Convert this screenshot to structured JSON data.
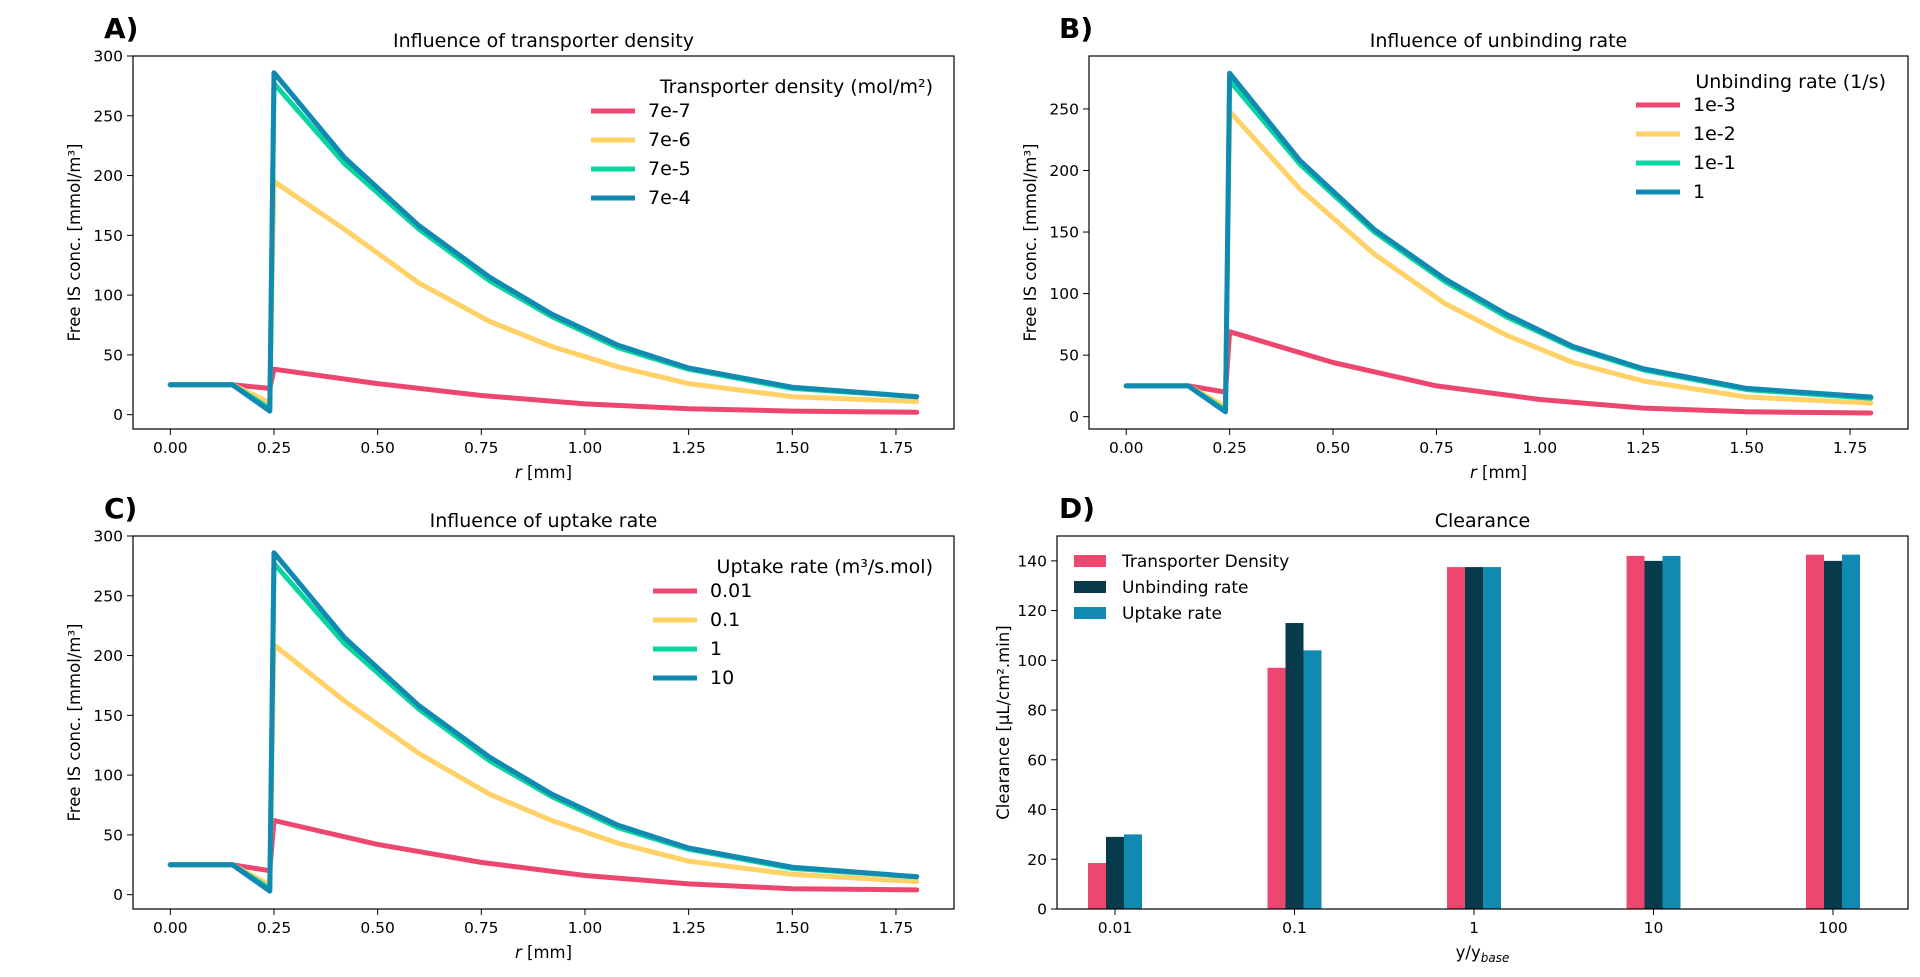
{
  "colors": {
    "red": "#EE476F",
    "yellow": "#FFD166",
    "green": "#06D6A0",
    "blue": "#118AB2",
    "navy": "#073B4C"
  },
  "chart_data": [
    {
      "panel": "A)",
      "type": "line",
      "title": "Influence of transporter density",
      "xlabel_italic": "r",
      "xlabel_rest": " [mm]",
      "ylabel": "Free IS conc. [mmol/m³]",
      "xlim": [
        -0.09,
        1.89
      ],
      "ylim": [
        -12,
        300
      ],
      "xticks": [
        0,
        0.25,
        0.5,
        0.75,
        1.0,
        1.25,
        1.5,
        1.75
      ],
      "xticklabels": [
        "0.00",
        "0.25",
        "0.50",
        "0.75",
        "1.00",
        "1.25",
        "1.50",
        "1.75"
      ],
      "yticks": [
        0,
        50,
        100,
        150,
        200,
        250,
        300
      ],
      "yticklabels": [
        "0",
        "50",
        "100",
        "150",
        "200",
        "250",
        "300"
      ],
      "legend": {
        "title": "Transporter density (mol/m²)",
        "position": "upper right"
      },
      "series": [
        {
          "name": "7e-7",
          "color": "#EE476F",
          "x": [
            0,
            0.15,
            0.24,
            0.25,
            0.5,
            0.75,
            1.0,
            1.25,
            1.5,
            1.8
          ],
          "y": [
            25,
            25,
            22,
            38,
            26,
            16,
            9,
            5,
            3,
            2
          ]
        },
        {
          "name": "7e-6",
          "color": "#FFD166",
          "x": [
            0,
            0.15,
            0.24,
            0.25,
            0.42,
            0.6,
            0.77,
            0.92,
            1.08,
            1.25,
            1.5,
            1.8
          ],
          "y": [
            25,
            25,
            10,
            195,
            155,
            110,
            78,
            57,
            40,
            26,
            15,
            11
          ]
        },
        {
          "name": "7e-5",
          "color": "#06D6A0",
          "x": [
            0,
            0.15,
            0.24,
            0.25,
            0.42,
            0.6,
            0.77,
            0.92,
            1.08,
            1.25,
            1.5,
            1.8
          ],
          "y": [
            25,
            25,
            5,
            277,
            210,
            155,
            112,
            82,
            56,
            38,
            22,
            15
          ]
        },
        {
          "name": "7e-4",
          "color": "#118AB2",
          "x": [
            0,
            0.15,
            0.24,
            0.25,
            0.42,
            0.6,
            0.77,
            0.92,
            1.08,
            1.25,
            1.5,
            1.8
          ],
          "y": [
            25,
            25,
            3,
            286,
            215,
            158,
            115,
            84,
            58,
            39,
            23,
            15
          ]
        }
      ]
    },
    {
      "panel": "B)",
      "type": "line",
      "title": "Influence of unbinding rate",
      "xlabel_italic": "r",
      "xlabel_rest": " [mm]",
      "ylabel": "Free IS conc. [mmol/m³]",
      "xlim": [
        -0.09,
        1.89
      ],
      "ylim": [
        -10,
        293
      ],
      "xticks": [
        0,
        0.25,
        0.5,
        0.75,
        1.0,
        1.25,
        1.5,
        1.75
      ],
      "xticklabels": [
        "0.00",
        "0.25",
        "0.50",
        "0.75",
        "1.00",
        "1.25",
        "1.50",
        "1.75"
      ],
      "yticks": [
        0,
        50,
        100,
        150,
        200,
        250
      ],
      "yticklabels": [
        "0",
        "50",
        "100",
        "150",
        "200",
        "250"
      ],
      "legend": {
        "title": "Unbinding rate (1/s)",
        "position": "upper right"
      },
      "series": [
        {
          "name": "1e-3",
          "color": "#EE476F",
          "x": [
            0,
            0.15,
            0.24,
            0.25,
            0.5,
            0.75,
            1.0,
            1.25,
            1.5,
            1.8
          ],
          "y": [
            25,
            25,
            20,
            69,
            44,
            25,
            14,
            7,
            4,
            3
          ]
        },
        {
          "name": "1e-2",
          "color": "#FFD166",
          "x": [
            0,
            0.15,
            0.24,
            0.25,
            0.42,
            0.6,
            0.77,
            0.92,
            1.08,
            1.25,
            1.5,
            1.8
          ],
          "y": [
            25,
            25,
            8,
            248,
            185,
            132,
            92,
            66,
            44,
            29,
            16,
            11
          ]
        },
        {
          "name": "1e-1",
          "color": "#06D6A0",
          "x": [
            0,
            0.15,
            0.24,
            0.25,
            0.42,
            0.6,
            0.77,
            0.92,
            1.08,
            1.25,
            1.5,
            1.8
          ],
          "y": [
            25,
            25,
            5,
            273,
            205,
            150,
            110,
            81,
            56,
            38,
            22,
            15
          ]
        },
        {
          "name": "1",
          "color": "#118AB2",
          "x": [
            0,
            0.15,
            0.24,
            0.25,
            0.42,
            0.6,
            0.77,
            0.92,
            1.08,
            1.25,
            1.5,
            1.8
          ],
          "y": [
            25,
            25,
            4,
            279,
            208,
            152,
            112,
            83,
            57,
            39,
            23,
            16
          ]
        }
      ]
    },
    {
      "panel": "C)",
      "type": "line",
      "title": "Influence of uptake rate",
      "xlabel_italic": "r",
      "xlabel_rest": " [mm]",
      "ylabel": "Free IS conc. [mmol/m³]",
      "xlim": [
        -0.09,
        1.89
      ],
      "ylim": [
        -12,
        300
      ],
      "xticks": [
        0,
        0.25,
        0.5,
        0.75,
        1.0,
        1.25,
        1.5,
        1.75
      ],
      "xticklabels": [
        "0.00",
        "0.25",
        "0.50",
        "0.75",
        "1.00",
        "1.25",
        "1.50",
        "1.75"
      ],
      "yticks": [
        0,
        50,
        100,
        150,
        200,
        250,
        300
      ],
      "yticklabels": [
        "0",
        "50",
        "100",
        "150",
        "200",
        "250",
        "300"
      ],
      "legend": {
        "title": "Uptake rate (m³/s.mol)",
        "position": "upper right"
      },
      "series": [
        {
          "name": "0.01",
          "color": "#EE476F",
          "x": [
            0,
            0.15,
            0.24,
            0.25,
            0.5,
            0.75,
            1.0,
            1.25,
            1.5,
            1.8
          ],
          "y": [
            25,
            25,
            20,
            62,
            42,
            27,
            16,
            9,
            5,
            4
          ]
        },
        {
          "name": "0.1",
          "color": "#FFD166",
          "x": [
            0,
            0.15,
            0.24,
            0.25,
            0.42,
            0.6,
            0.77,
            0.92,
            1.08,
            1.25,
            1.5,
            1.8
          ],
          "y": [
            25,
            25,
            8,
            209,
            162,
            118,
            84,
            62,
            43,
            28,
            17,
            11
          ]
        },
        {
          "name": "1",
          "color": "#06D6A0",
          "x": [
            0,
            0.15,
            0.24,
            0.25,
            0.42,
            0.6,
            0.77,
            0.92,
            1.08,
            1.25,
            1.5,
            1.8
          ],
          "y": [
            25,
            25,
            5,
            277,
            210,
            155,
            112,
            82,
            56,
            38,
            22,
            15
          ]
        },
        {
          "name": "10",
          "color": "#118AB2",
          "x": [
            0,
            0.15,
            0.24,
            0.25,
            0.42,
            0.6,
            0.77,
            0.92,
            1.08,
            1.25,
            1.5,
            1.8
          ],
          "y": [
            25,
            25,
            3,
            286,
            215,
            158,
            115,
            84,
            58,
            39,
            23,
            15
          ]
        }
      ]
    },
    {
      "panel": "D)",
      "type": "bar",
      "title": "Clearance",
      "xlabel": "y/y",
      "xlabel_sub": "base",
      "ylabel": "Clearance [µL/cm².min]",
      "ylim": [
        0,
        150
      ],
      "yticks": [
        0,
        20,
        40,
        60,
        80,
        100,
        120,
        140
      ],
      "yticklabels": [
        "0",
        "20",
        "40",
        "60",
        "80",
        "100",
        "120",
        "140"
      ],
      "categories": [
        "0.01",
        "0.1",
        "1",
        "10",
        "100"
      ],
      "legend": {
        "position": "upper left"
      },
      "series": [
        {
          "name": "Transporter Density",
          "color": "#EE476F",
          "values": [
            18.5,
            97,
            137.5,
            142,
            142.5
          ]
        },
        {
          "name": "Unbinding rate",
          "color": "#073B4C",
          "values": [
            29,
            115,
            137.5,
            140,
            140
          ]
        },
        {
          "name": "Uptake rate",
          "color": "#118AB2",
          "values": [
            30,
            104,
            137.5,
            142,
            142.5
          ]
        }
      ]
    }
  ]
}
